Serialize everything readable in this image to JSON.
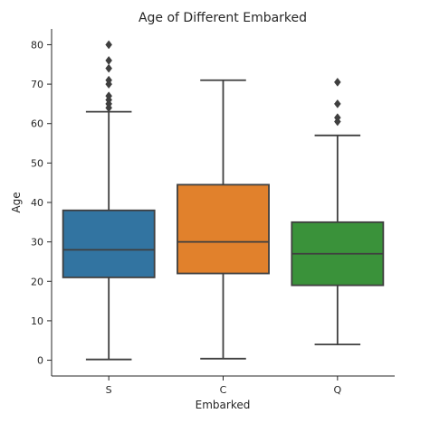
{
  "chart_data": {
    "type": "box",
    "title": "Age of Different Embarked",
    "xlabel": "Embarked",
    "ylabel": "Age",
    "categories": [
      "S",
      "C",
      "Q"
    ],
    "ylim": [
      -4,
      84
    ],
    "yticks": [
      0,
      10,
      20,
      30,
      40,
      50,
      60,
      70,
      80
    ],
    "series": [
      {
        "category": "S",
        "whisker_low": 0.2,
        "q1": 21,
        "median": 28,
        "q3": 38,
        "whisker_high": 63,
        "outliers": [
          64,
          65,
          66,
          67,
          70,
          71,
          74,
          76,
          80
        ],
        "color": "#3274a1"
      },
      {
        "category": "C",
        "whisker_low": 0.4,
        "q1": 22,
        "median": 30,
        "q3": 44.5,
        "whisker_high": 71,
        "outliers": [],
        "color": "#e1812c"
      },
      {
        "category": "Q",
        "whisker_low": 4,
        "q1": 19,
        "median": 27,
        "q3": 35,
        "whisker_high": 57,
        "outliers": [
          60.5,
          61.5,
          65,
          70.5
        ],
        "color": "#3a923a"
      }
    ],
    "grid": false
  }
}
